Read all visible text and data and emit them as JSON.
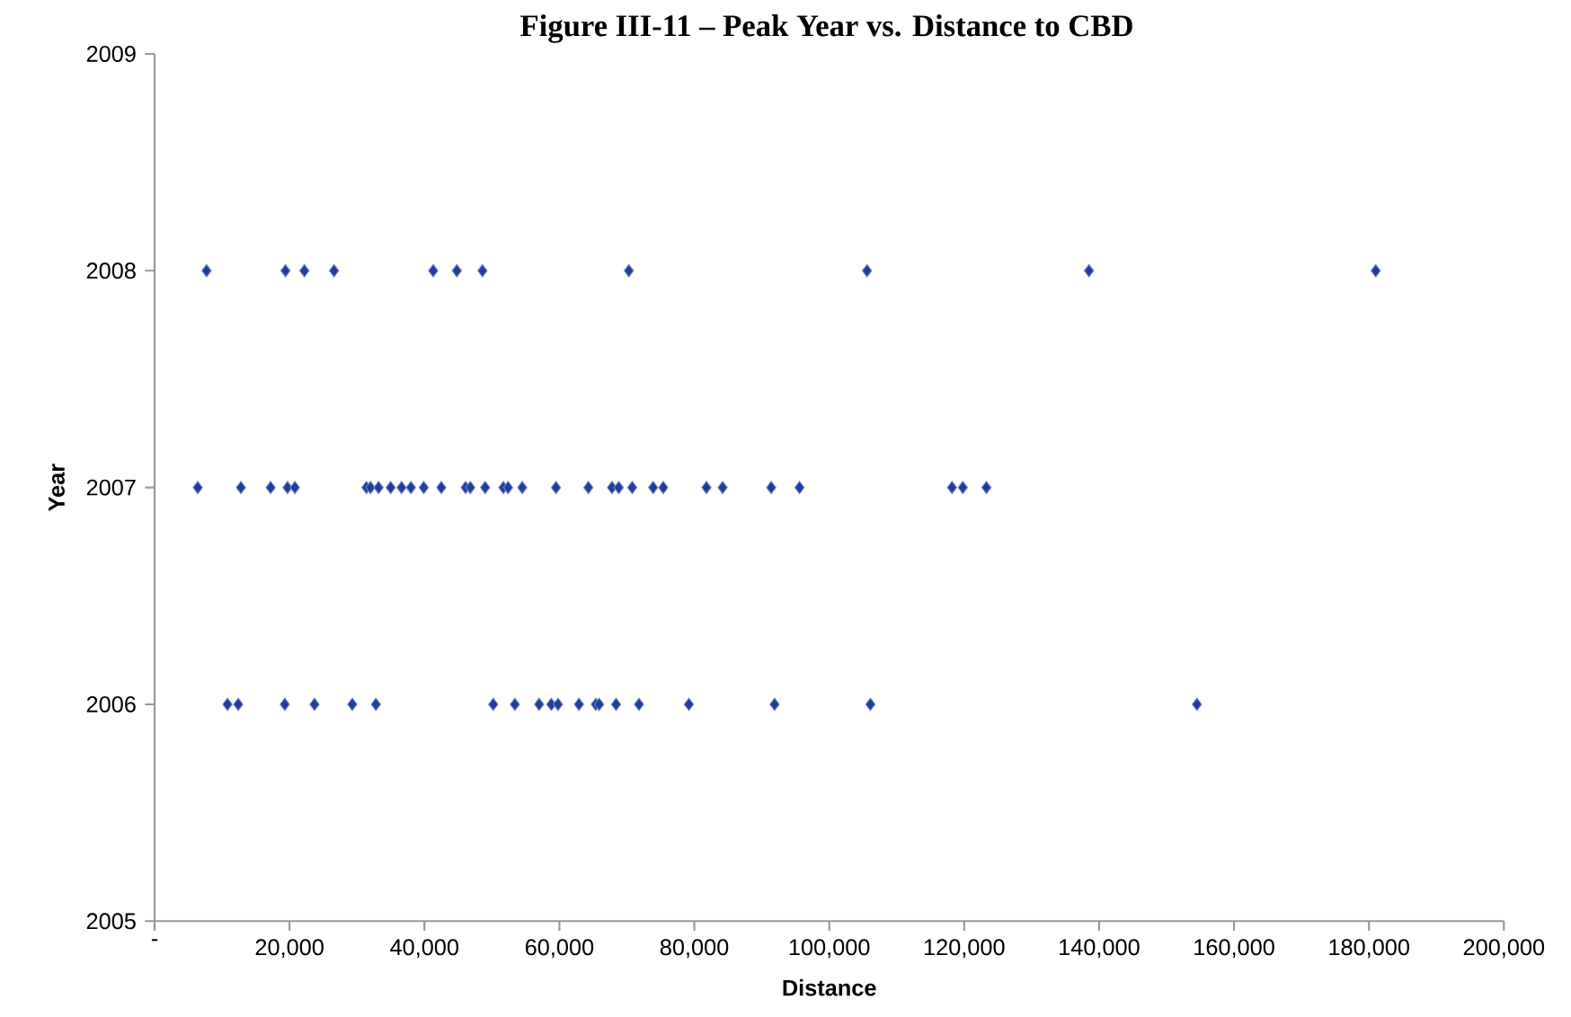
{
  "chart_data": {
    "type": "scatter",
    "title": "Figure III-11 – Peak Year vs. Distance to CBD",
    "xlabel": "Distance",
    "ylabel": "Year",
    "marker": "diamond",
    "xlim": [
      0,
      200000
    ],
    "xticks": [
      {
        "value": 0,
        "label": "-"
      },
      {
        "value": 20000,
        "label": "20,000"
      },
      {
        "value": 40000,
        "label": "40,000"
      },
      {
        "value": 60000,
        "label": "60,000"
      },
      {
        "value": 80000,
        "label": "80,000"
      },
      {
        "value": 100000,
        "label": "100,000"
      },
      {
        "value": 120000,
        "label": "120,000"
      },
      {
        "value": 140000,
        "label": "140,000"
      },
      {
        "value": 160000,
        "label": "160,000"
      },
      {
        "value": 180000,
        "label": "180,000"
      },
      {
        "value": 200000,
        "label": "200,000"
      }
    ],
    "ylim": [
      2005,
      2009
    ],
    "yticks": [
      2005,
      2006,
      2007,
      2008,
      2009
    ],
    "series": [
      {
        "color": "#1f3d9c",
        "x": [
          7700,
          19400,
          22200,
          26600,
          41300,
          44800,
          48600,
          70300,
          105600,
          138500,
          181000,
          6400,
          12800,
          17200,
          19700,
          20800,
          31400,
          32000,
          33200,
          35000,
          36600,
          38000,
          39900,
          42500,
          46100,
          46800,
          49000,
          51700,
          52400,
          54500,
          59500,
          64300,
          67800,
          68800,
          70800,
          73900,
          75400,
          81800,
          84200,
          91400,
          95600,
          118200,
          119800,
          123300,
          10800,
          12400,
          19300,
          23700,
          29300,
          32800,
          50200,
          53400,
          57000,
          58800,
          59800,
          62900,
          65400,
          65900,
          68400,
          71800,
          79200,
          91900,
          106100,
          154500
        ],
        "values": [
          2008,
          2008,
          2008,
          2008,
          2008,
          2008,
          2008,
          2008,
          2008,
          2008,
          2008,
          2007,
          2007,
          2007,
          2007,
          2007,
          2007,
          2007,
          2007,
          2007,
          2007,
          2007,
          2007,
          2007,
          2007,
          2007,
          2007,
          2007,
          2007,
          2007,
          2007,
          2007,
          2007,
          2007,
          2007,
          2007,
          2007,
          2007,
          2007,
          2007,
          2007,
          2007,
          2007,
          2007,
          2006,
          2006,
          2006,
          2006,
          2006,
          2006,
          2006,
          2006,
          2006,
          2006,
          2006,
          2006,
          2006,
          2006,
          2006,
          2006,
          2006,
          2006,
          2006,
          2006
        ]
      }
    ]
  }
}
